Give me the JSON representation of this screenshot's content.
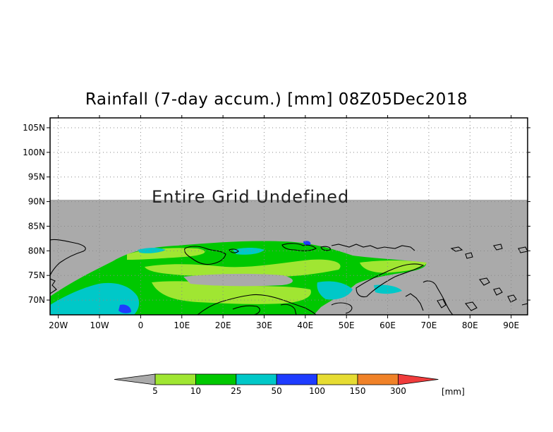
{
  "title": "Rainfall (7-day accum.) [mm] 08Z05Dec2018",
  "undefined_message": "Entire Grid Undefined",
  "colors": {
    "undefined_gray": "#aaaaaa",
    "light_green": "#a0e632",
    "green": "#00c800",
    "cyan": "#00c8c8",
    "blue": "#1e3cff",
    "yellow": "#e6dc32",
    "orange": "#f08228",
    "red": "#f03c3c",
    "purple": "#8a2be2"
  },
  "chart_data": {
    "type": "heatmap",
    "title": "Rainfall (7-day accum.) [mm] 08Z05Dec2018",
    "x_ticks": [
      "20W",
      "10W",
      "0",
      "10E",
      "20E",
      "30E",
      "40E",
      "50E",
      "60E",
      "70E",
      "80E",
      "90E"
    ],
    "y_ticks": [
      "105N",
      "100N",
      "95N",
      "90N",
      "85N",
      "80N",
      "75N",
      "70N"
    ],
    "xlim": [
      -22,
      94
    ],
    "ylim": [
      67,
      107
    ],
    "grid": true,
    "colorbar": {
      "thresholds": [
        "5",
        "10",
        "25",
        "50",
        "100",
        "150",
        "300"
      ],
      "unit": "[mm]",
      "colors": [
        "#aaaaaa",
        "#a0e632",
        "#00c800",
        "#00c8c8",
        "#1e3cff",
        "#e6dc32",
        "#f08228",
        "#f03c3c"
      ]
    }
  }
}
